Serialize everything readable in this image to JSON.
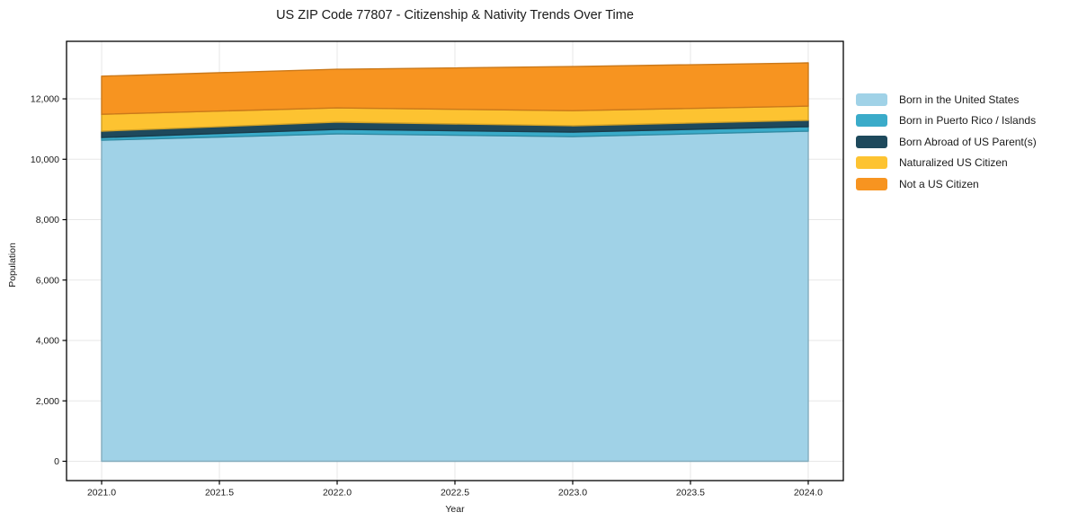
{
  "title": "US ZIP Code 77807 - Citizenship & Nativity Trends Over Time",
  "chart_data": {
    "type": "area",
    "stacked": true,
    "title": "US ZIP Code 77807 - Citizenship & Nativity Trends Over Time",
    "xlabel": "Year",
    "ylabel": "Population",
    "x": [
      2021,
      2022,
      2023,
      2024
    ],
    "series": [
      {
        "name": "Born in the United States",
        "color": "#a0d2e7",
        "values": [
          10630,
          10840,
          10750,
          10930
        ]
      },
      {
        "name": "Born in Puerto Rico / Islands",
        "color": "#3aabc9",
        "values": [
          90,
          150,
          150,
          150
        ]
      },
      {
        "name": "Born Abroad of US Parent(s)",
        "color": "#1e495c",
        "values": [
          210,
          240,
          210,
          210
        ]
      },
      {
        "name": "Naturalized US Citizen",
        "color": "#fdc331",
        "values": [
          560,
          470,
          500,
          470
        ]
      },
      {
        "name": "Not a US Citizen",
        "color": "#f79420",
        "values": [
          1260,
          1280,
          1460,
          1430
        ]
      }
    ],
    "stack_totals": [
      12750,
      12980,
      13070,
      13190
    ],
    "xlim": [
      2020.851,
      2024.149
    ],
    "ylim": [
      -640,
      13905
    ],
    "xticks": {
      "values": [
        2021.0,
        2021.5,
        2022.0,
        2022.5,
        2023.0,
        2023.5,
        2024.0
      ],
      "labels": [
        "2021.0",
        "2021.5",
        "2022.0",
        "2022.5",
        "2023.0",
        "2023.5",
        "2024.0"
      ]
    },
    "yticks": {
      "values": [
        0,
        2000,
        4000,
        6000,
        8000,
        10000,
        12000
      ],
      "labels": [
        "0",
        "2,000",
        "4,000",
        "6,000",
        "8,000",
        "10,000",
        "12,000"
      ]
    },
    "grid": true,
    "grid_color": "#e7e7e7",
    "spine_color": "#000000",
    "legend_position": "right-outside"
  }
}
